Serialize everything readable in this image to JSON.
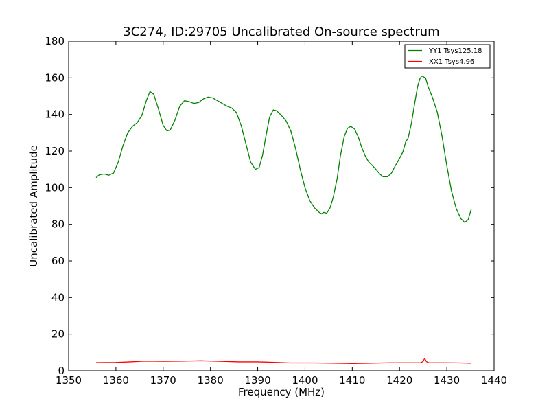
{
  "chart_data": {
    "type": "line",
    "title": "3C274, ID:29705 Uncalibrated On-source spectrum",
    "xlabel": "Frequency (MHz)",
    "ylabel": "Uncalibrated Amplitude",
    "xlim": [
      1350,
      1440
    ],
    "ylim": [
      0,
      180
    ],
    "xticks": [
      1350,
      1360,
      1370,
      1380,
      1390,
      1400,
      1410,
      1420,
      1430,
      1440
    ],
    "yticks": [
      0,
      20,
      40,
      60,
      80,
      100,
      120,
      140,
      160,
      180
    ],
    "grid": false,
    "legend_position": "top-right",
    "series": [
      {
        "name": "YY1 Tsys125.18",
        "color": "#008000",
        "points": [
          [
            1355.8,
            105.5
          ],
          [
            1356.5,
            107.0
          ],
          [
            1357.5,
            107.5
          ],
          [
            1358.5,
            106.8
          ],
          [
            1359.5,
            108.0
          ],
          [
            1360.5,
            114.0
          ],
          [
            1361.5,
            123.0
          ],
          [
            1362.5,
            130.0
          ],
          [
            1363.5,
            133.5
          ],
          [
            1364.5,
            135.5
          ],
          [
            1365.5,
            139.5
          ],
          [
            1366.5,
            148.0
          ],
          [
            1367.2,
            152.5
          ],
          [
            1368.0,
            151.0
          ],
          [
            1369.0,
            143.0
          ],
          [
            1370.0,
            134.0
          ],
          [
            1370.8,
            131.0
          ],
          [
            1371.5,
            131.5
          ],
          [
            1372.5,
            137.0
          ],
          [
            1373.5,
            144.5
          ],
          [
            1374.5,
            147.5
          ],
          [
            1375.5,
            147.0
          ],
          [
            1376.5,
            146.0
          ],
          [
            1377.5,
            146.5
          ],
          [
            1378.5,
            148.5
          ],
          [
            1379.5,
            149.5
          ],
          [
            1380.5,
            149.0
          ],
          [
            1381.5,
            147.5
          ],
          [
            1382.5,
            146.0
          ],
          [
            1383.5,
            144.5
          ],
          [
            1384.5,
            143.5
          ],
          [
            1385.5,
            141.0
          ],
          [
            1386.5,
            134.0
          ],
          [
            1387.5,
            124.0
          ],
          [
            1388.5,
            114.0
          ],
          [
            1389.5,
            110.0
          ],
          [
            1390.3,
            111.0
          ],
          [
            1391.0,
            117.5
          ],
          [
            1391.8,
            129.0
          ],
          [
            1392.5,
            138.5
          ],
          [
            1393.3,
            142.5
          ],
          [
            1394.0,
            142.0
          ],
          [
            1395.0,
            139.5
          ],
          [
            1396.0,
            136.5
          ],
          [
            1397.0,
            131.0
          ],
          [
            1398.0,
            121.5
          ],
          [
            1399.0,
            110.0
          ],
          [
            1400.0,
            100.0
          ],
          [
            1401.0,
            93.0
          ],
          [
            1402.0,
            89.0
          ],
          [
            1403.0,
            86.5
          ],
          [
            1403.5,
            85.7
          ],
          [
            1404.0,
            86.5
          ],
          [
            1404.6,
            86.0
          ],
          [
            1405.3,
            89.0
          ],
          [
            1406.0,
            95.0
          ],
          [
            1406.8,
            105.0
          ],
          [
            1407.5,
            117.5
          ],
          [
            1408.3,
            128.0
          ],
          [
            1409.0,
            132.5
          ],
          [
            1409.7,
            133.5
          ],
          [
            1410.5,
            132.0
          ],
          [
            1411.3,
            127.5
          ],
          [
            1412.0,
            122.0
          ],
          [
            1412.8,
            117.0
          ],
          [
            1413.5,
            114.0
          ],
          [
            1414.3,
            112.0
          ],
          [
            1415.0,
            110.0
          ],
          [
            1415.8,
            107.5
          ],
          [
            1416.5,
            106.0
          ],
          [
            1417.5,
            106.0
          ],
          [
            1418.3,
            108.0
          ],
          [
            1419.0,
            111.5
          ],
          [
            1420.0,
            116.0
          ],
          [
            1420.7,
            119.5
          ],
          [
            1421.3,
            125.0
          ],
          [
            1421.8,
            127.0
          ],
          [
            1422.5,
            135.0
          ],
          [
            1423.2,
            146.0
          ],
          [
            1423.8,
            155.0
          ],
          [
            1424.3,
            159.5
          ],
          [
            1424.7,
            161.0
          ],
          [
            1425.5,
            160.0
          ],
          [
            1426.0,
            155.5
          ],
          [
            1427.0,
            149.0
          ],
          [
            1428.0,
            141.0
          ],
          [
            1429.0,
            128.0
          ],
          [
            1430.0,
            112.0
          ],
          [
            1431.0,
            98.0
          ],
          [
            1432.0,
            88.5
          ],
          [
            1433.0,
            83.0
          ],
          [
            1433.8,
            81.0
          ],
          [
            1434.5,
            82.5
          ],
          [
            1435.2,
            88.5
          ]
        ]
      },
      {
        "name": "XX1 Tsys4.96",
        "color": "#ff0000",
        "points": [
          [
            1355.8,
            4.5
          ],
          [
            1360.0,
            4.6
          ],
          [
            1363.0,
            4.9
          ],
          [
            1366.0,
            5.3
          ],
          [
            1370.0,
            5.2
          ],
          [
            1374.0,
            5.3
          ],
          [
            1378.0,
            5.5
          ],
          [
            1382.0,
            5.2
          ],
          [
            1386.0,
            4.9
          ],
          [
            1390.0,
            4.9
          ],
          [
            1393.0,
            4.7
          ],
          [
            1397.0,
            4.3
          ],
          [
            1402.0,
            4.3
          ],
          [
            1406.0,
            4.2
          ],
          [
            1410.0,
            4.0
          ],
          [
            1414.0,
            4.2
          ],
          [
            1418.0,
            4.4
          ],
          [
            1421.0,
            4.4
          ],
          [
            1424.5,
            4.4
          ],
          [
            1425.0,
            5.2
          ],
          [
            1425.3,
            6.8
          ],
          [
            1425.7,
            5.0
          ],
          [
            1426.2,
            4.4
          ],
          [
            1430.0,
            4.4
          ],
          [
            1433.0,
            4.3
          ],
          [
            1435.2,
            4.2
          ]
        ]
      }
    ]
  }
}
